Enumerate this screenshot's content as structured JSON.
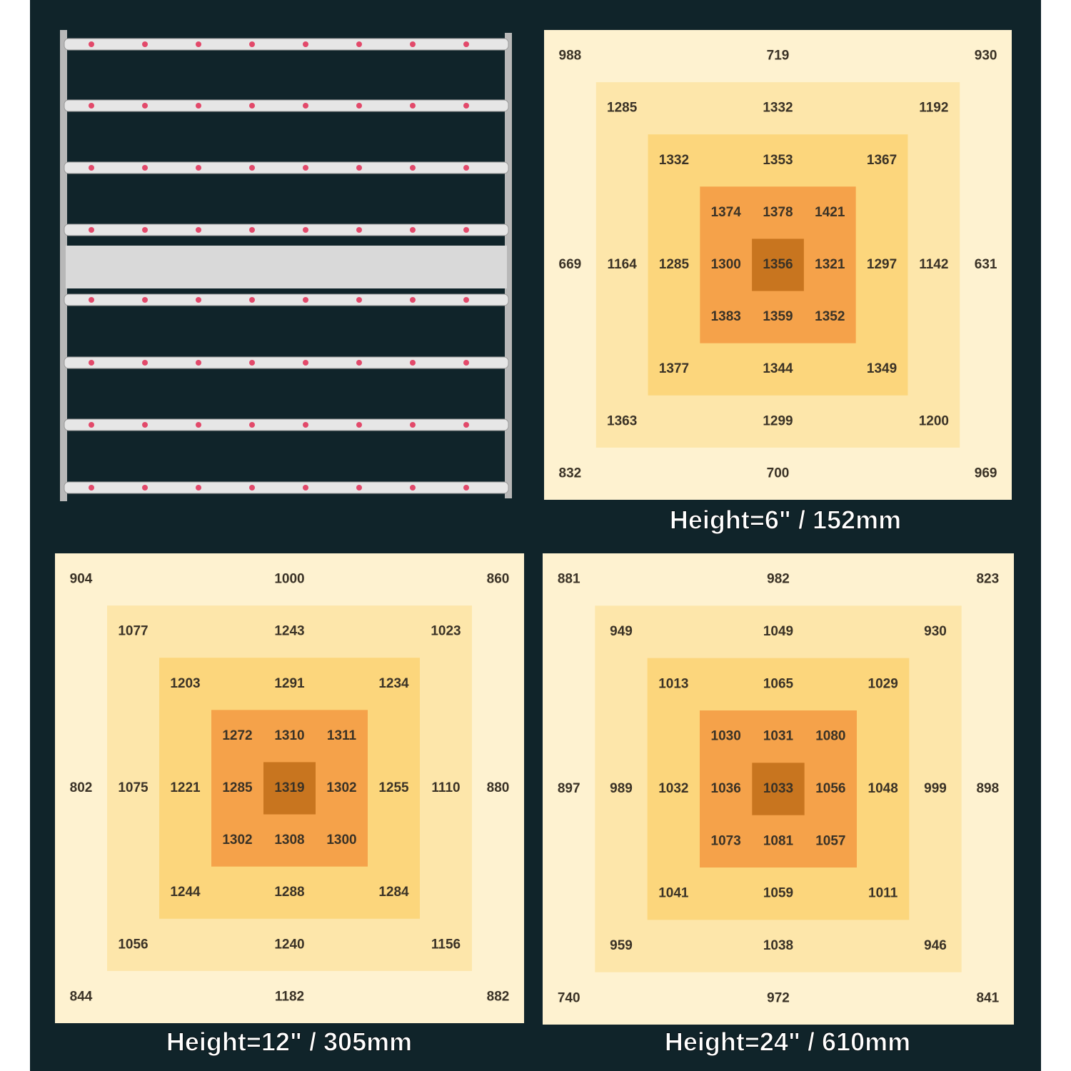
{
  "maps": [
    {
      "caption": "Height=6\" / 152mm",
      "rows": [
        [
          988,
          719,
          930
        ],
        [
          1285,
          1332,
          1192
        ],
        [
          1332,
          1353,
          1367
        ],
        [
          1374,
          1378,
          1421
        ],
        [
          669,
          1164,
          1285,
          1300,
          1356,
          1321,
          1297,
          1142,
          631
        ],
        [
          1383,
          1359,
          1352
        ],
        [
          1377,
          1344,
          1349
        ],
        [
          1363,
          1299,
          1200
        ],
        [
          832,
          700,
          969
        ]
      ]
    },
    {
      "caption": "Height=12\" / 305mm",
      "rows": [
        [
          904,
          1000,
          860
        ],
        [
          1077,
          1243,
          1023
        ],
        [
          1203,
          1291,
          1234
        ],
        [
          1272,
          1310,
          1311
        ],
        [
          802,
          1075,
          1221,
          1285,
          1319,
          1302,
          1255,
          1110,
          880
        ],
        [
          1302,
          1308,
          1300
        ],
        [
          1244,
          1288,
          1284
        ],
        [
          1056,
          1240,
          1156
        ],
        [
          844,
          1182,
          882
        ]
      ]
    },
    {
      "caption": "Height=24\" / 610mm",
      "rows": [
        [
          881,
          982,
          823
        ],
        [
          949,
          1049,
          930
        ],
        [
          1013,
          1065,
          1029
        ],
        [
          1030,
          1031,
          1080
        ],
        [
          897,
          989,
          1032,
          1036,
          1033,
          1056,
          1048,
          999,
          898
        ],
        [
          1073,
          1081,
          1057
        ],
        [
          1041,
          1059,
          1011
        ],
        [
          959,
          1038,
          946
        ],
        [
          740,
          972,
          841
        ]
      ]
    }
  ]
}
